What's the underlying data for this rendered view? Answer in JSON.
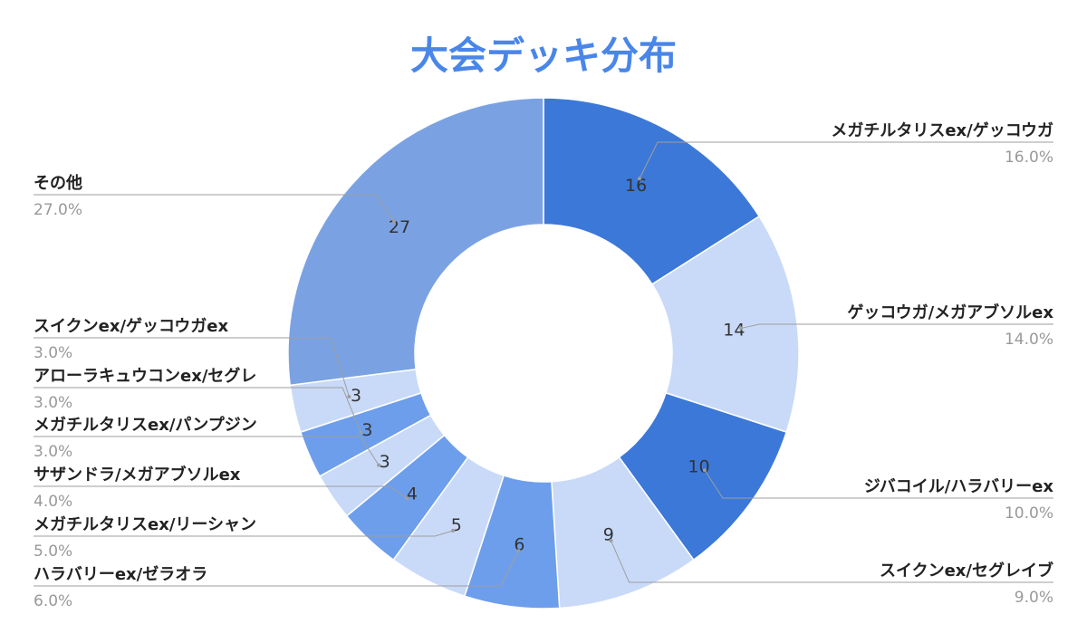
{
  "chart_data": {
    "type": "pie",
    "donut": true,
    "title": "大会デッキ分布",
    "legend": "outside labels with leader lines",
    "slices": [
      {
        "label": "メガチルタリスex/ゲッコウガ",
        "value": 16,
        "percent": "16.0%",
        "color": "#3c78d8"
      },
      {
        "label": "ゲッコウガ/メガアブソルex",
        "value": 14,
        "percent": "14.0%",
        "color": "#c9daf8"
      },
      {
        "label": "ジバコイル/ハラバリーex",
        "value": 10,
        "percent": "10.0%",
        "color": "#3c78d8"
      },
      {
        "label": "スイクンex/セグレイブ",
        "value": 9,
        "percent": "9.0%",
        "color": "#c9daf8"
      },
      {
        "label": "ハラバリーex/ゼラオラ",
        "value": 6,
        "percent": "6.0%",
        "color": "#6d9eeb"
      },
      {
        "label": "メガチルタリスex/リーシャン",
        "value": 5,
        "percent": "5.0%",
        "color": "#c9daf8"
      },
      {
        "label": "サザンドラ/メガアブソルex",
        "value": 4,
        "percent": "4.0%",
        "color": "#6d9eeb"
      },
      {
        "label": "メガチルタリスex/パンプジン",
        "value": 3,
        "percent": "3.0%",
        "color": "#c9daf8"
      },
      {
        "label": "アローラキュウコンex/セグレ",
        "value": 3,
        "percent": "3.0%",
        "color": "#6d9eeb"
      },
      {
        "label": "スイクンex/ゲッコウガex",
        "value": 3,
        "percent": "3.0%",
        "color": "#c9daf8"
      },
      {
        "label": "その他",
        "value": 27,
        "percent": "27.0%",
        "color": "#7aa2e3"
      }
    ]
  }
}
